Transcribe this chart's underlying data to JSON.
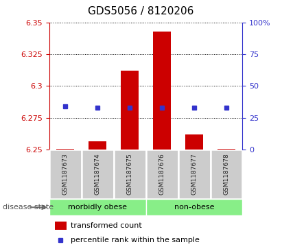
{
  "title": "GDS5056 / 8120206",
  "samples": [
    "GSM1187673",
    "GSM1187674",
    "GSM1187675",
    "GSM1187676",
    "GSM1187677",
    "GSM1187678"
  ],
  "bar_values": [
    6.2505,
    6.2565,
    6.312,
    6.343,
    6.262,
    6.2505
  ],
  "bar_base": 6.25,
  "dot_values": [
    6.284,
    6.283,
    6.283,
    6.283,
    6.283,
    6.283
  ],
  "ylim": [
    6.25,
    6.35
  ],
  "yticks_left": [
    6.25,
    6.275,
    6.3,
    6.325,
    6.35
  ],
  "yticks_right": [
    0,
    25,
    50,
    75,
    100
  ],
  "bar_color": "#cc0000",
  "dot_color": "#3333cc",
  "groups": [
    {
      "label": "morbidly obese",
      "indices": [
        0,
        1,
        2
      ],
      "color": "#88ee88"
    },
    {
      "label": "non-obese",
      "indices": [
        3,
        4,
        5
      ],
      "color": "#88ee88"
    }
  ],
  "disease_state_label": "disease state",
  "legend_bar_label": "transformed count",
  "legend_dot_label": "percentile rank within the sample",
  "left_axis_color": "#cc0000",
  "right_axis_color": "#3333cc",
  "grid_color": "black",
  "background_color": "#ffffff",
  "xticklabel_bg": "#cccccc",
  "title_fontsize": 11
}
